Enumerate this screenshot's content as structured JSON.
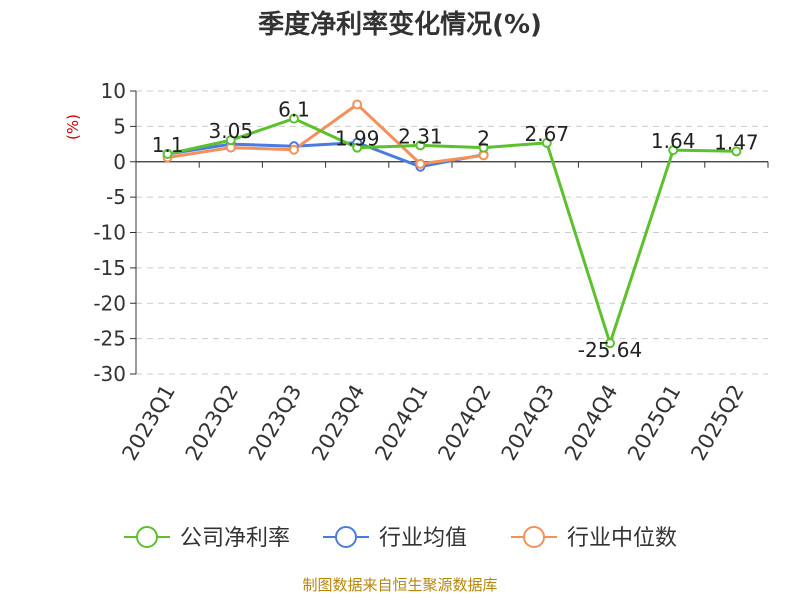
{
  "chart_data": {
    "type": "line",
    "title": "季度净利率变化情况(%)",
    "ylabel": "(%)",
    "xlabel": "",
    "ylim": [
      -30,
      10
    ],
    "yticks": [
      10,
      5,
      0,
      -5,
      -10,
      -15,
      -20,
      -25,
      -30
    ],
    "grid": true,
    "legend_position": "bottom",
    "categories": [
      "2023Q1",
      "2023Q2",
      "2023Q3",
      "2023Q4",
      "2024Q1",
      "2024Q2",
      "2024Q3",
      "2024Q4",
      "2025Q1",
      "2025Q2"
    ],
    "series": [
      {
        "name": "公司净利率",
        "color": "#5cc12e",
        "values": [
          1.1,
          3.05,
          6.1,
          1.99,
          2.31,
          2,
          2.67,
          -25.64,
          1.64,
          1.47
        ],
        "labels": [
          "1.1",
          "3.05",
          "6.1",
          "1.99",
          "2.31",
          "2",
          "2.67",
          "-25.64",
          "1.64",
          "1.47"
        ]
      },
      {
        "name": "行业均值",
        "color": "#4a7be0",
        "values": [
          1.1,
          2.5,
          2.2,
          2.7,
          -0.7,
          1.0,
          null,
          null,
          null,
          null
        ]
      },
      {
        "name": "行业中位数",
        "color": "#f5905a",
        "values": [
          0.6,
          2.0,
          1.7,
          8.1,
          -0.3,
          0.9,
          null,
          null,
          null,
          null
        ]
      }
    ]
  },
  "source": "制图数据来自恒生聚源数据库"
}
